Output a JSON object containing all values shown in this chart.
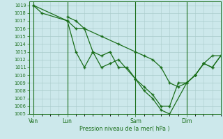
{
  "title": "Pression niveau de la mer( hPa )",
  "bg_color": "#cce8eb",
  "grid_color": "#aacccc",
  "line_color": "#1a6e1a",
  "ylim": [
    1005,
    1019.5
  ],
  "yticks": [
    1005,
    1006,
    1007,
    1008,
    1009,
    1010,
    1011,
    1012,
    1013,
    1014,
    1015,
    1016,
    1017,
    1018,
    1019
  ],
  "xtick_labels": [
    "Ven",
    "Lun",
    "Sam",
    "Dim"
  ],
  "xtick_positions": [
    0,
    8,
    24,
    36
  ],
  "xlim": [
    -1,
    44
  ],
  "vlines": [
    0,
    8,
    24,
    36
  ],
  "line1": {
    "x": [
      0,
      2,
      8,
      10,
      12,
      16,
      20,
      24,
      26,
      28,
      30,
      32,
      34,
      36,
      38,
      40,
      42,
      44
    ],
    "y": [
      1019,
      1018,
      1017,
      1016,
      1016,
      1015,
      1014,
      1013,
      1012.5,
      1012,
      1011,
      1009,
      1008.5,
      1009,
      1010,
      1011.5,
      1012.5,
      1012.5
    ]
  },
  "line2": {
    "x": [
      0,
      8,
      10,
      12,
      14,
      16,
      18,
      20,
      24,
      26,
      28,
      30,
      32,
      36,
      38,
      40,
      42,
      44
    ],
    "y": [
      1019,
      1017,
      1013,
      1011,
      1013,
      1011,
      1011.5,
      1012,
      1009.5,
      1008,
      1007,
      1005.5,
      1005,
      1009,
      1010,
      1011.5,
      1011,
      1012.5
    ]
  },
  "line3": {
    "x": [
      8,
      10,
      12,
      14,
      16,
      18,
      20,
      22,
      24,
      26,
      28,
      30,
      32,
      34,
      36,
      38,
      40,
      42,
      44
    ],
    "y": [
      1017.5,
      1017,
      1016,
      1013,
      1012.5,
      1013,
      1011,
      1011,
      1009.5,
      1008.5,
      1007.5,
      1006,
      1006,
      1009,
      1009,
      1010,
      1011.5,
      1011,
      1012.5
    ]
  }
}
